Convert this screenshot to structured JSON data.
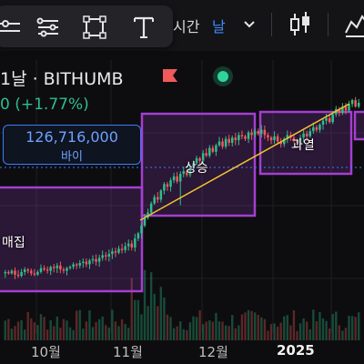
{
  "toolbar": {
    "tools": [
      "trend-line-icon",
      "parallel-channel-icon",
      "rectangle-icon",
      "text-icon"
    ],
    "interval_label": "시간",
    "interval_value": "날",
    "candle_type_icon": "candlestick-icon",
    "indicators_icon": "indicators-icon"
  },
  "symbol": {
    "title": "1날 · BITHUMB",
    "change": "0 (+1.77%)",
    "flag_color": "#f05a5a",
    "live_color": "#2fd49a"
  },
  "price_box": {
    "value": "126,716,000",
    "label": "바이"
  },
  "zones": [
    {
      "label": "매집"
    },
    {
      "label": "상승"
    },
    {
      "label": "과열"
    }
  ],
  "xaxis": {
    "labels": [
      "10월",
      "11월",
      "12월",
      "2025"
    ]
  },
  "colors": {
    "up": "#2fbf8a",
    "down": "#f05a5a",
    "zone_border": "#a43fd0",
    "trend_line": "#f1c232",
    "price_line": "#3d7bff"
  },
  "chart_data": {
    "type": "candlestick",
    "series": [
      {
        "name": "price",
        "values": [
          82,
          81,
          83,
          80,
          79,
          82,
          84,
          83,
          81,
          80,
          82,
          85,
          84,
          83,
          86,
          85,
          87,
          84,
          83,
          85,
          86,
          88,
          87,
          89,
          90,
          88,
          91,
          92,
          90,
          93,
          95,
          94,
          96,
          98,
          97,
          100,
          99,
          102,
          104,
          101,
          108,
          112,
          118,
          124,
          128,
          135,
          140,
          138,
          145,
          150,
          148,
          153,
          156,
          152,
          158,
          160,
          157,
          163,
          166,
          170,
          168,
          174,
          172,
          178,
          175,
          180,
          183,
          179,
          185,
          182,
          186,
          184,
          188,
          187,
          185,
          190,
          188,
          191,
          189,
          192,
          188,
          186,
          184,
          187,
          183,
          181,
          185,
          188,
          186,
          184,
          182,
          186,
          189,
          187,
          191,
          194,
          192,
          196,
          199,
          201,
          198,
          204,
          208,
          205,
          210,
          207,
          212,
          215,
          210,
          213
        ]
      }
    ]
  }
}
